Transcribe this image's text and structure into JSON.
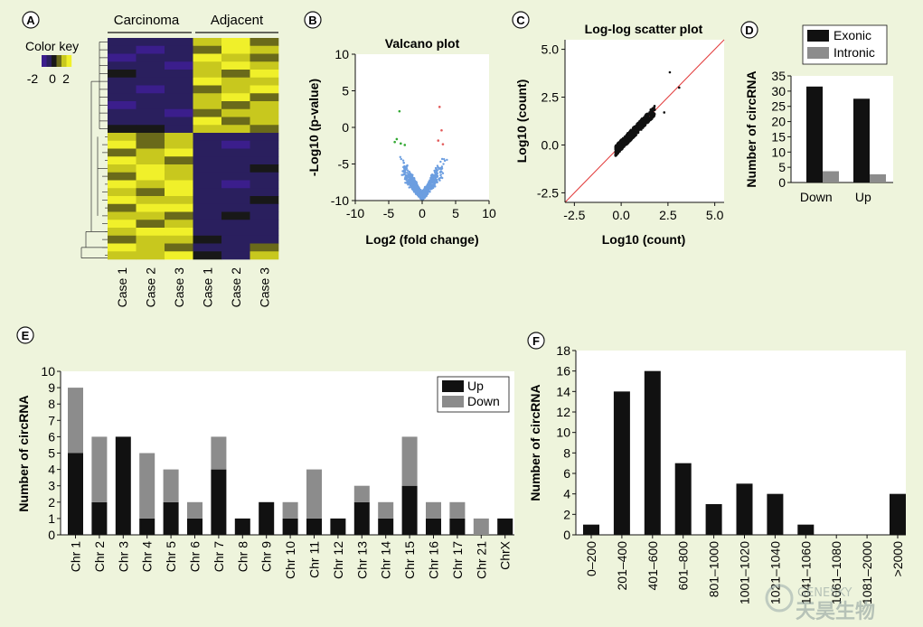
{
  "panel_letters": [
    "A",
    "B",
    "C",
    "D",
    "E",
    "F"
  ],
  "colors": {
    "background": "#eef4dc",
    "bar_up": "#111111",
    "bar_down": "#8c8c8c",
    "heat_low": "#3b1e8c",
    "heat_mid": "#1a1a1a",
    "heat_high": "#f0f02a",
    "volcano_blue": "#6c9ee0",
    "volcano_green": "#33a933",
    "volcano_red": "#e25a5a",
    "diag_line": "#e23a3a"
  },
  "chart_data": [
    {
      "id": "A",
      "type": "heatmap",
      "group_labels": [
        "Carcinoma",
        "Adjacent"
      ],
      "columns": [
        "Case 1",
        "Case 2",
        "Case 3",
        "Case 1",
        "Case 2",
        "Case 3"
      ],
      "color_key": {
        "title": "Color key",
        "ticks": [
          "-2",
          "0",
          "2"
        ]
      },
      "palette": [
        "#3b1e8c",
        "#2a1f5e",
        "#181818",
        "#6a6a1a",
        "#c8c81e",
        "#f0f02a"
      ],
      "rows": [
        [
          1,
          1,
          1,
          4,
          5,
          3
        ],
        [
          1,
          0,
          1,
          3,
          5,
          4
        ],
        [
          0,
          1,
          1,
          5,
          4,
          3
        ],
        [
          1,
          1,
          0,
          4,
          5,
          4
        ],
        [
          2,
          1,
          1,
          4,
          3,
          5
        ],
        [
          1,
          1,
          1,
          5,
          4,
          4
        ],
        [
          1,
          0,
          1,
          3,
          4,
          5
        ],
        [
          1,
          1,
          1,
          4,
          5,
          3
        ],
        [
          0,
          1,
          1,
          4,
          3,
          4
        ],
        [
          1,
          1,
          0,
          3,
          4,
          4
        ],
        [
          1,
          1,
          1,
          5,
          3,
          4
        ],
        [
          2,
          2,
          1,
          4,
          4,
          3
        ],
        [
          4,
          3,
          4,
          1,
          1,
          1
        ],
        [
          5,
          3,
          4,
          1,
          0,
          1
        ],
        [
          3,
          4,
          5,
          1,
          1,
          1
        ],
        [
          5,
          4,
          3,
          1,
          1,
          1
        ],
        [
          4,
          5,
          4,
          1,
          1,
          2
        ],
        [
          3,
          5,
          4,
          1,
          1,
          1
        ],
        [
          5,
          4,
          5,
          1,
          0,
          1
        ],
        [
          4,
          3,
          5,
          1,
          1,
          1
        ],
        [
          5,
          4,
          4,
          1,
          1,
          2
        ],
        [
          3,
          5,
          5,
          1,
          1,
          1
        ],
        [
          4,
          4,
          3,
          1,
          2,
          1
        ],
        [
          5,
          3,
          4,
          1,
          1,
          1
        ],
        [
          4,
          5,
          5,
          1,
          1,
          1
        ],
        [
          3,
          4,
          4,
          2,
          1,
          1
        ],
        [
          5,
          4,
          3,
          1,
          1,
          3
        ],
        [
          4,
          4,
          5,
          2,
          1,
          4
        ]
      ]
    },
    {
      "id": "B",
      "type": "scatter",
      "title": "Valcano plot",
      "xlabel": "Log2 (fold change)",
      "ylabel": "-Log10 (p-value)",
      "xlim": [
        -10,
        10
      ],
      "ylim": [
        -10,
        10
      ],
      "xticks": [
        "-10",
        "-5",
        "0",
        "5",
        "10"
      ],
      "yticks": [
        "-10",
        "-5",
        "0",
        "5",
        "10"
      ]
    },
    {
      "id": "C",
      "type": "scatter",
      "title": "Log-log scatter plot",
      "xlabel": "Log10 (count)",
      "ylabel": "Log10 (count)",
      "xlim": [
        -3,
        5.5
      ],
      "ylim": [
        -3,
        5.5
      ],
      "xticks": [
        "-2.5",
        "0.0",
        "2.5",
        "5.0"
      ],
      "yticks": [
        "-2.5",
        "0.0",
        "2.5",
        "5.0"
      ]
    },
    {
      "id": "D",
      "type": "bar",
      "categories": [
        "Down",
        "Up"
      ],
      "series": [
        {
          "name": "Exonic",
          "values": [
            31.5,
            27.5
          ]
        },
        {
          "name": "Intronic",
          "values": [
            3.7,
            2.7
          ]
        }
      ],
      "ylabel": "Number of circRNA",
      "ylim": [
        0,
        35
      ],
      "yticks": [
        "0",
        "5",
        "10",
        "15",
        "20",
        "25",
        "30",
        "35"
      ]
    },
    {
      "id": "E",
      "type": "bar",
      "stacked": true,
      "categories": [
        "Chr 1",
        "Chr 2",
        "Chr 3",
        "Chr 4",
        "Chr 5",
        "Chr 6",
        "Chr 7",
        "Chr 8",
        "Chr 9",
        "Chr 10",
        "Chr 11",
        "Chr 12",
        "Chr 13",
        "Chr 14",
        "Chr 15",
        "Chr 16",
        "Chr 17",
        "Chr 21",
        "ChrX"
      ],
      "series": [
        {
          "name": "Up",
          "values": [
            5,
            2,
            6,
            1,
            2,
            1,
            4,
            1,
            2,
            1,
            1,
            1,
            2,
            1,
            3,
            1,
            1,
            0,
            1
          ]
        },
        {
          "name": "Down",
          "values": [
            4,
            4,
            0,
            4,
            2,
            1,
            2,
            0,
            0,
            1,
            3,
            0,
            1,
            1,
            3,
            1,
            1,
            1,
            0
          ]
        }
      ],
      "ylabel": "Number of circRNA",
      "ylim": [
        0,
        10
      ],
      "yticks": [
        "0",
        "1",
        "2",
        "3",
        "4",
        "5",
        "6",
        "7",
        "8",
        "9",
        "10"
      ]
    },
    {
      "id": "F",
      "type": "bar",
      "categories": [
        "0–200",
        "201–400",
        "401–600",
        "601–800",
        "801–1000",
        "1001–1020",
        "1021–1040",
        "1041–1060",
        "1061–1080",
        "1081–2000",
        ">2000"
      ],
      "values": [
        1,
        14,
        16,
        7,
        3,
        5,
        4,
        1,
        0,
        0,
        4
      ],
      "ylabel": "Number of circRNA",
      "ylim": [
        0,
        18
      ],
      "yticks": [
        "0",
        "2",
        "4",
        "6",
        "8",
        "10",
        "12",
        "14",
        "16",
        "18"
      ]
    }
  ],
  "watermark": {
    "line1": "GENESKY",
    "line2": "天昊生物"
  }
}
